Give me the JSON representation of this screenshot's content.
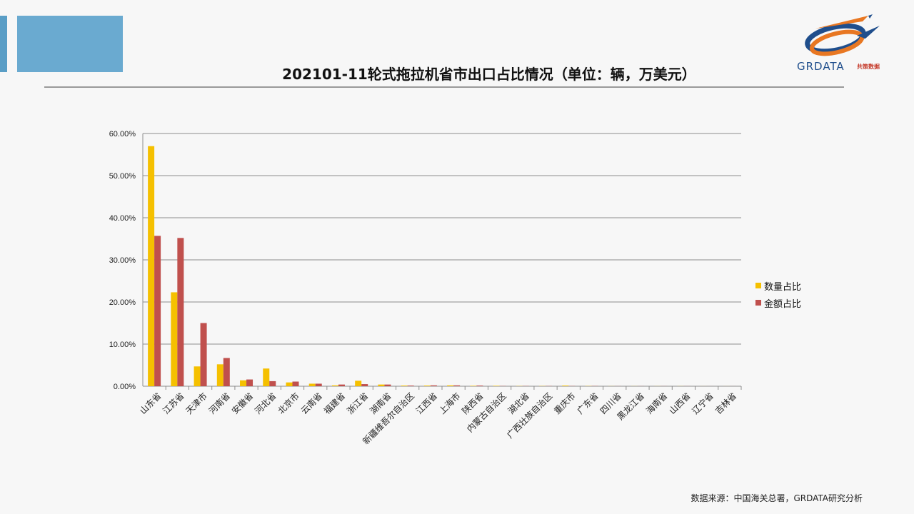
{
  "slide": {
    "title": "202101-11轮式拖拉机省市出口占比情况（单位：辆，万美元）",
    "source": "数据来源：中国海关总署，GRDATA研究分析"
  },
  "logo": {
    "name": "GRDATA",
    "sub": "共策数据"
  },
  "chart_data": {
    "type": "bar",
    "categories": [
      "山东省",
      "江苏省",
      "天津市",
      "河南省",
      "安徽省",
      "河北省",
      "北京市",
      "云南省",
      "福建省",
      "浙江省",
      "湖南省",
      "新疆维吾尔自治区",
      "江西省",
      "上海市",
      "陕西省",
      "内蒙古自治区",
      "湖北省",
      "广西壮族自治区",
      "重庆市",
      "广东省",
      "四川省",
      "黑龙江省",
      "海南省",
      "山西省",
      "辽宁省",
      "吉林省"
    ],
    "series": [
      {
        "name": "数量占比",
        "color": "#f5c000",
        "values": [
          57.0,
          22.3,
          4.7,
          5.2,
          1.4,
          4.2,
          0.9,
          0.6,
          0.2,
          1.3,
          0.4,
          0.15,
          0.15,
          0.2,
          0.1,
          0.1,
          0.05,
          0.05,
          0.15,
          0.05,
          0.02,
          0.02,
          0.02,
          0.02,
          0.01,
          0.01
        ]
      },
      {
        "name": "金额占比",
        "color": "#c0504d",
        "values": [
          35.7,
          35.2,
          15.0,
          6.7,
          1.6,
          1.2,
          1.1,
          0.6,
          0.4,
          0.5,
          0.4,
          0.15,
          0.2,
          0.2,
          0.15,
          0.05,
          0.05,
          0.05,
          0.05,
          0.05,
          0.02,
          0.02,
          0.02,
          0.02,
          0.01,
          0.01
        ]
      }
    ],
    "yticks": [
      "0.00%",
      "10.00%",
      "20.00%",
      "30.00%",
      "40.00%",
      "50.00%",
      "60.00%"
    ],
    "ylim": [
      0,
      60
    ],
    "grid": true,
    "legend": "right"
  }
}
